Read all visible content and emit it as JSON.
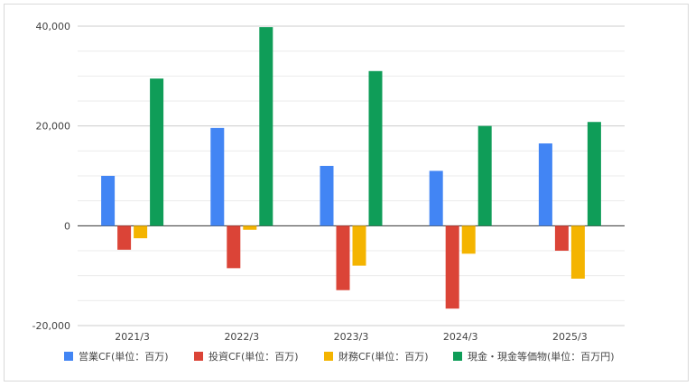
{
  "chart_data": {
    "type": "bar",
    "categories": [
      "2021/3",
      "2022/3",
      "2023/3",
      "2024/3",
      "2025/3"
    ],
    "series": [
      {
        "name": "営業CF(単位：百万)",
        "color": "#4285f4",
        "values": [
          10000,
          19600,
          12000,
          11000,
          16500
        ]
      },
      {
        "name": "投資CF(単位：百万)",
        "color": "#db4437",
        "values": [
          -4800,
          -8500,
          -12900,
          -16600,
          -5000
        ]
      },
      {
        "name": "財務CF(単位：百万)",
        "color": "#f4b400",
        "values": [
          -2500,
          -800,
          -8000,
          -5600,
          -10600
        ]
      },
      {
        "name": "現金・現金等価物(単位：百万円)",
        "color": "#0f9d58",
        "values": [
          29500,
          39800,
          31000,
          20000,
          20800
        ]
      }
    ],
    "y_ticks": [
      40000,
      20000,
      0,
      -20000
    ],
    "y_tick_labels": [
      "40,000",
      "20,000",
      "0",
      "-20,000"
    ],
    "ylim": [
      -20000,
      40000
    ],
    "grid": true,
    "legend_position": "bottom",
    "title": "",
    "xlabel": "",
    "ylabel": ""
  }
}
